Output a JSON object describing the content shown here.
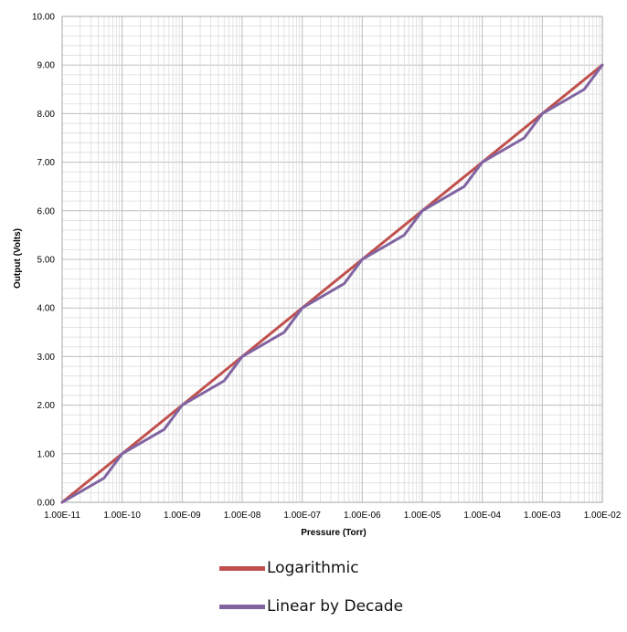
{
  "chart_data": {
    "type": "line",
    "title": "",
    "xlabel": "Pressure (Torr)",
    "ylabel": "Output (Volts)",
    "x_scale": "log",
    "xlim": [
      1e-11,
      0.01
    ],
    "ylim": [
      0,
      10
    ],
    "x_tick_labels": [
      "1.00E-11",
      "1.00E-10",
      "1.00E-09",
      "1.00E-08",
      "1.00E-07",
      "1.00E-06",
      "1.00E-05",
      "1.00E-04",
      "1.00E-03",
      "1.00E-02"
    ],
    "y_tick_labels": [
      "0.00",
      "1.00",
      "2.00",
      "3.00",
      "4.00",
      "5.00",
      "6.00",
      "7.00",
      "8.00",
      "9.00",
      "10.00"
    ],
    "grid": true,
    "legend_position": "bottom",
    "series": [
      {
        "name": "Logarithmic",
        "color": "#c0504d",
        "points": [
          [
            1e-11,
            0
          ],
          [
            0.01,
            9
          ]
        ]
      },
      {
        "name": "Linear by Decade",
        "color": "#8064a2",
        "points": [
          [
            1e-11,
            0
          ],
          [
            5e-11,
            0.5
          ],
          [
            1e-10,
            1
          ],
          [
            5e-10,
            1.5
          ],
          [
            1e-09,
            2
          ],
          [
            5e-09,
            2.5
          ],
          [
            1e-08,
            3
          ],
          [
            5e-08,
            3.5
          ],
          [
            1e-07,
            4
          ],
          [
            5e-07,
            4.5
          ],
          [
            1e-06,
            5
          ],
          [
            5e-06,
            5.5
          ],
          [
            1e-05,
            6
          ],
          [
            5e-05,
            6.5
          ],
          [
            0.0001,
            7
          ],
          [
            0.0005,
            7.5
          ],
          [
            0.001,
            8
          ],
          [
            0.005,
            8.5
          ],
          [
            0.01,
            9
          ]
        ]
      }
    ]
  }
}
